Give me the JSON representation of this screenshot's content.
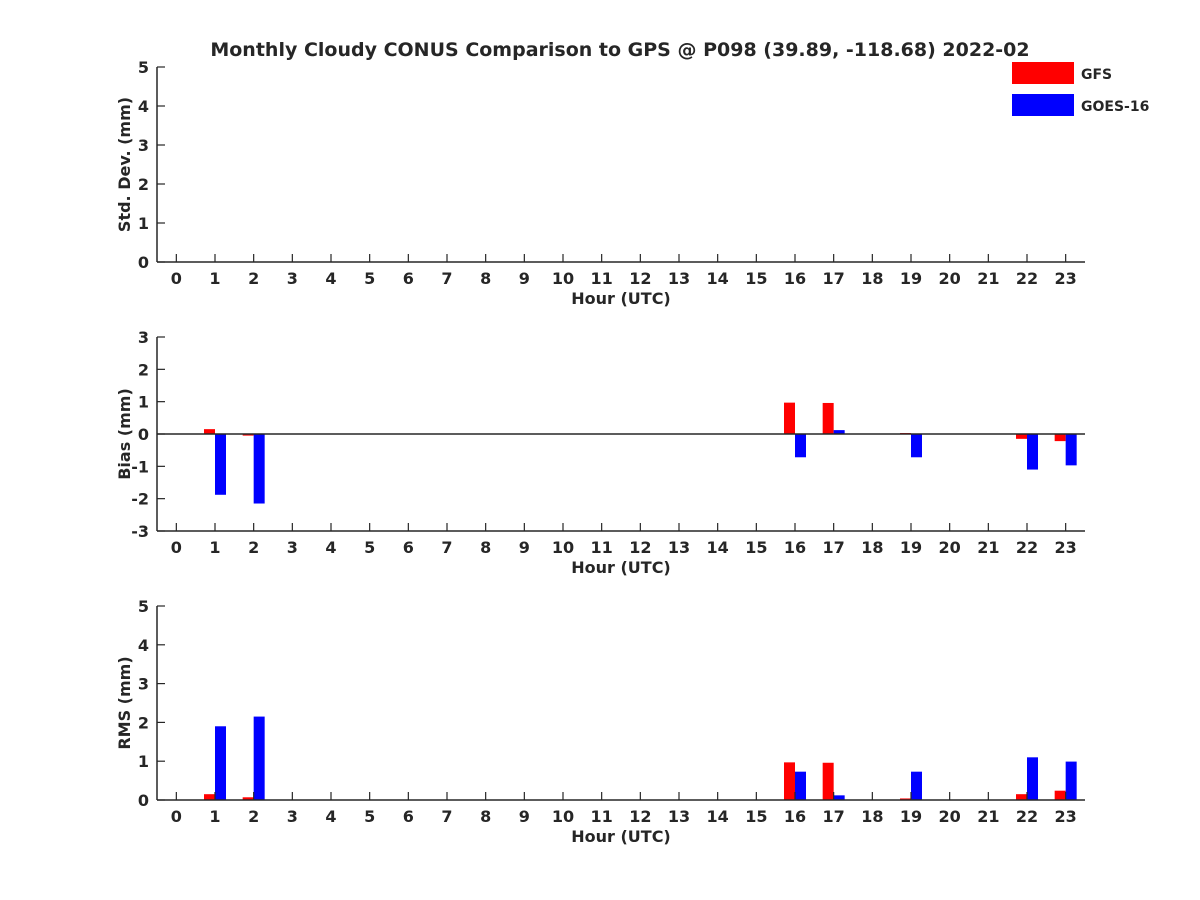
{
  "title": "Monthly Cloudy CONUS Comparison to GPS @ P098 (39.89, -118.68) 2022-02",
  "legend": {
    "placement": "top-right",
    "entries": [
      {
        "label": "GFS",
        "color": "#ff0000"
      },
      {
        "label": "GOES-16",
        "color": "#0000ff"
      }
    ]
  },
  "chart_data": [
    {
      "type": "bar",
      "xlabel": "Hour (UTC)",
      "ylabel": "Std. Dev. (mm)",
      "xlim": [
        -0.5,
        23.5
      ],
      "ylim": [
        0,
        5
      ],
      "yticks": [
        0,
        1,
        2,
        3,
        4,
        5
      ],
      "categories": [
        "0",
        "1",
        "2",
        "3",
        "4",
        "5",
        "6",
        "7",
        "8",
        "9",
        "10",
        "11",
        "12",
        "13",
        "14",
        "15",
        "16",
        "17",
        "18",
        "19",
        "20",
        "21",
        "22",
        "23"
      ],
      "series": [
        {
          "name": "GFS",
          "color": "#ff0000",
          "values": [
            null,
            0,
            0,
            null,
            null,
            null,
            null,
            null,
            null,
            null,
            null,
            null,
            null,
            null,
            null,
            null,
            0,
            0,
            null,
            0,
            null,
            null,
            0,
            0
          ]
        },
        {
          "name": "GOES-16",
          "color": "#0000ff",
          "values": [
            null,
            0,
            0,
            null,
            null,
            null,
            null,
            null,
            null,
            null,
            null,
            null,
            null,
            null,
            null,
            null,
            0,
            0,
            null,
            0,
            null,
            null,
            0,
            0
          ]
        }
      ],
      "zero_line": false
    },
    {
      "type": "bar",
      "xlabel": "Hour (UTC)",
      "ylabel": "Bias (mm)",
      "xlim": [
        -0.5,
        23.5
      ],
      "ylim": [
        -3,
        3
      ],
      "yticks": [
        -3,
        -2,
        -1,
        0,
        1,
        2,
        3
      ],
      "categories": [
        "0",
        "1",
        "2",
        "3",
        "4",
        "5",
        "6",
        "7",
        "8",
        "9",
        "10",
        "11",
        "12",
        "13",
        "14",
        "15",
        "16",
        "17",
        "18",
        "19",
        "20",
        "21",
        "22",
        "23"
      ],
      "series": [
        {
          "name": "GFS",
          "color": "#ff0000",
          "values": [
            null,
            0.15,
            -0.05,
            null,
            null,
            null,
            null,
            null,
            null,
            null,
            null,
            null,
            null,
            null,
            null,
            null,
            0.97,
            0.96,
            null,
            0.03,
            null,
            null,
            -0.15,
            -0.22
          ]
        },
        {
          "name": "GOES-16",
          "color": "#0000ff",
          "values": [
            null,
            -1.88,
            -2.15,
            null,
            null,
            null,
            null,
            null,
            null,
            null,
            null,
            null,
            null,
            null,
            null,
            null,
            -0.72,
            0.12,
            null,
            -0.72,
            null,
            null,
            -1.1,
            -0.97
          ]
        }
      ],
      "zero_line": true
    },
    {
      "type": "bar",
      "xlabel": "Hour (UTC)",
      "ylabel": "RMS (mm)",
      "xlim": [
        -0.5,
        23.5
      ],
      "ylim": [
        0,
        5
      ],
      "yticks": [
        0,
        1,
        2,
        3,
        4,
        5
      ],
      "categories": [
        "0",
        "1",
        "2",
        "3",
        "4",
        "5",
        "6",
        "7",
        "8",
        "9",
        "10",
        "11",
        "12",
        "13",
        "14",
        "15",
        "16",
        "17",
        "18",
        "19",
        "20",
        "21",
        "22",
        "23"
      ],
      "series": [
        {
          "name": "GFS",
          "color": "#ff0000",
          "values": [
            null,
            0.15,
            0.07,
            null,
            null,
            null,
            null,
            null,
            null,
            null,
            null,
            null,
            null,
            null,
            null,
            null,
            0.97,
            0.96,
            null,
            0.04,
            null,
            null,
            0.15,
            0.24
          ]
        },
        {
          "name": "GOES-16",
          "color": "#0000ff",
          "values": [
            null,
            1.9,
            2.15,
            null,
            null,
            null,
            null,
            null,
            null,
            null,
            null,
            null,
            null,
            null,
            null,
            null,
            0.73,
            0.12,
            null,
            0.73,
            null,
            null,
            1.1,
            0.99
          ]
        }
      ],
      "zero_line": false
    }
  ]
}
